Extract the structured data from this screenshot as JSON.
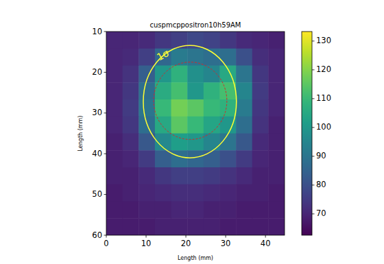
{
  "chart_data": {
    "type": "heatmap",
    "title": "cuspmcppositron10h59AM",
    "x_label": "Length (mm)",
    "y_label": "Length (mm)",
    "xlim": [
      0,
      44.8
    ],
    "ylim": [
      60,
      10
    ],
    "xticks": [
      0,
      10,
      20,
      30,
      40
    ],
    "yticks": [
      10,
      20,
      30,
      40,
      50,
      60
    ],
    "cells": [
      [
        70,
        70,
        71,
        74,
        76,
        78,
        77,
        74,
        71,
        70,
        69
      ],
      [
        70,
        71,
        76,
        86,
        92,
        90,
        88,
        88,
        80,
        72,
        70
      ],
      [
        70,
        73,
        84,
        100,
        108,
        98,
        95,
        105,
        90,
        74,
        70
      ],
      [
        70,
        74,
        88,
        106,
        112,
        100,
        108,
        112,
        95,
        75,
        70
      ],
      [
        70,
        75,
        90,
        110,
        118,
        115,
        110,
        108,
        92,
        74,
        70
      ],
      [
        70,
        74,
        88,
        105,
        115,
        110,
        104,
        100,
        88,
        73,
        69
      ],
      [
        69,
        72,
        82,
        96,
        102,
        100,
        95,
        90,
        82,
        71,
        69
      ],
      [
        69,
        70,
        75,
        84,
        88,
        86,
        84,
        80,
        75,
        70,
        69
      ],
      [
        69,
        69,
        71,
        74,
        76,
        76,
        75,
        73,
        71,
        69,
        69
      ],
      [
        68,
        69,
        70,
        71,
        72,
        72,
        71,
        70,
        69,
        69,
        68
      ],
      [
        68,
        68,
        69,
        69,
        70,
        70,
        69,
        69,
        68,
        68,
        68
      ],
      [
        68,
        68,
        68,
        69,
        69,
        69,
        69,
        68,
        68,
        68,
        68
      ]
    ],
    "colorbar": {
      "range": [
        62.6,
        133.3
      ],
      "ticks": [
        70,
        80,
        90,
        100,
        110,
        120,
        130
      ]
    },
    "ellipses": [
      {
        "label": "1σ",
        "cx": 21,
        "cy": 27.2,
        "rx": 11.7,
        "ry": 13.8,
        "color": "#ffff33",
        "line_style": "solid"
      },
      {
        "cx": 21.1,
        "cy": 27,
        "rx": 9.2,
        "ry": 9.5,
        "color": "#d62728",
        "line_style": "dashed"
      }
    ]
  }
}
